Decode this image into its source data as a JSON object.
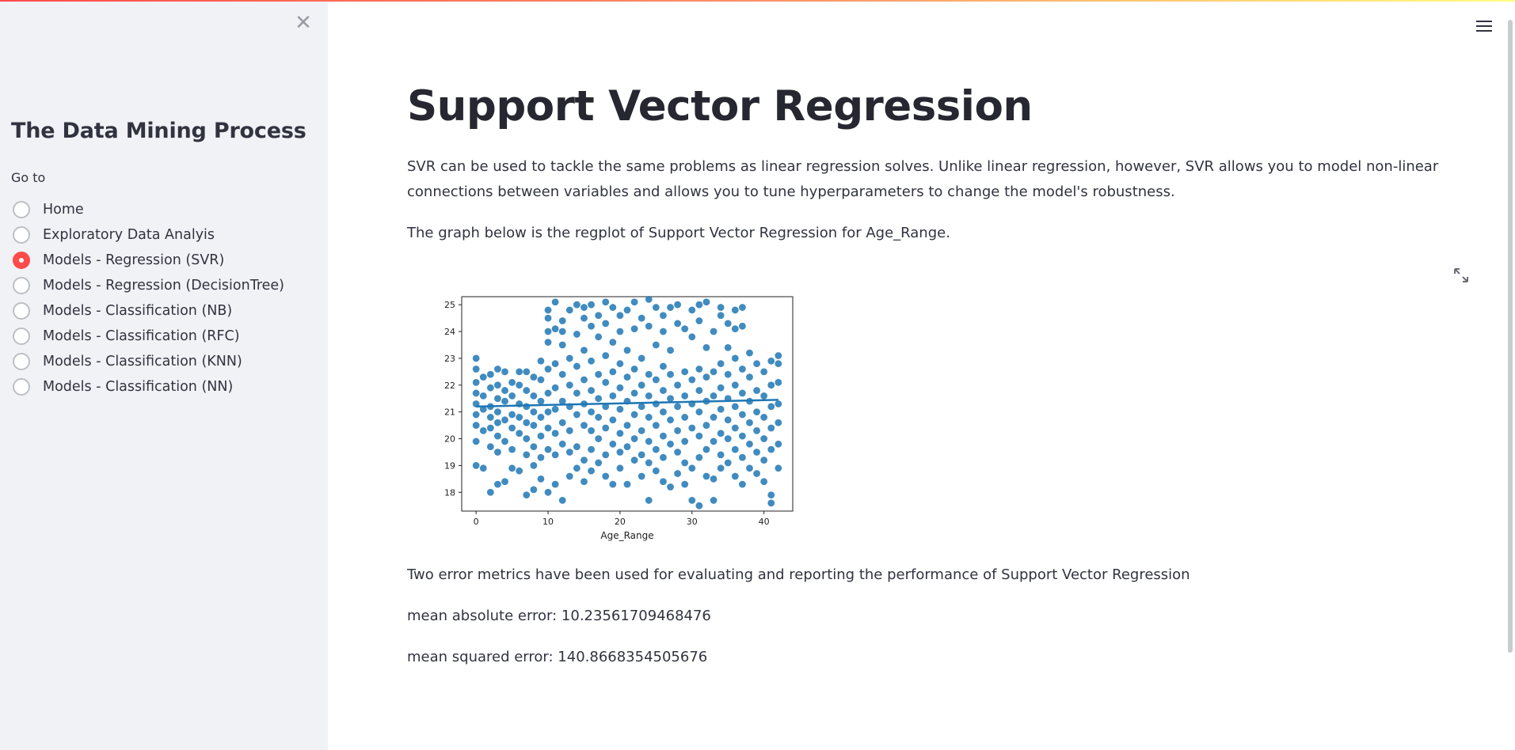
{
  "sidebar": {
    "close_glyph": "✕",
    "title": "The Data Mining Process",
    "goto_label": "Go to",
    "options": [
      {
        "label": "Home",
        "checked": false
      },
      {
        "label": "Exploratory Data Analyis",
        "checked": false
      },
      {
        "label": "Models - Regression (SVR)",
        "checked": true
      },
      {
        "label": "Models - Regression (DecisionTree)",
        "checked": false
      },
      {
        "label": "Models - Classification (NB)",
        "checked": false
      },
      {
        "label": "Models - Classification (RFC)",
        "checked": false
      },
      {
        "label": "Models - Classification (KNN)",
        "checked": false
      },
      {
        "label": "Models - Classification (NN)",
        "checked": false
      }
    ]
  },
  "header": {
    "menu_icon": "hamburger-menu-icon"
  },
  "main": {
    "title": "Support Vector Regression",
    "intro": "SVR can be used to tackle the same problems as linear regression solves. Unlike linear regression, however, SVR allows you to model non-linear connections between variables and allows you to tune hyperparameters to change the model's robustness.",
    "graph_caption": "The graph below is the regplot of Support Vector Regression for Age_Range.",
    "metrics_intro": "Two error metrics have been used for evaluating and reporting the performance of Support Vector Regression",
    "mae": "mean absolute error: 10.23561709468476",
    "mse": "mean squared error: 140.8668354505676",
    "expand_icon": "fullscreen-expand-icon"
  },
  "colors": {
    "accent": "#ff4b4b",
    "point": "#1f77b4",
    "sidebar_bg": "#f0f2f6"
  },
  "chart_data": {
    "type": "scatter",
    "xlabel": "Age_Range",
    "ylabel": "",
    "xlim": [
      -2,
      44
    ],
    "ylim": [
      17.3,
      25.3
    ],
    "xticks": [
      "0",
      "10",
      "20",
      "30",
      "40"
    ],
    "yticks": [
      "18",
      "19",
      "20",
      "21",
      "22",
      "23",
      "24",
      "25"
    ],
    "regression_line": {
      "x": [
        0,
        42
      ],
      "y": [
        21.2,
        21.45
      ]
    },
    "points": [
      [
        0,
        19.0
      ],
      [
        0,
        19.9
      ],
      [
        0,
        20.5
      ],
      [
        0,
        20.9
      ],
      [
        0,
        21.3
      ],
      [
        0,
        21.7
      ],
      [
        0,
        22.1
      ],
      [
        0,
        22.6
      ],
      [
        0,
        23.0
      ],
      [
        1,
        18.9
      ],
      [
        1,
        20.3
      ],
      [
        1,
        21.1
      ],
      [
        1,
        21.6
      ],
      [
        1,
        22.3
      ],
      [
        2,
        18.0
      ],
      [
        2,
        19.7
      ],
      [
        2,
        20.4
      ],
      [
        2,
        20.8
      ],
      [
        2,
        21.2
      ],
      [
        2,
        21.9
      ],
      [
        2,
        22.4
      ],
      [
        3,
        18.3
      ],
      [
        3,
        19.5
      ],
      [
        3,
        20.1
      ],
      [
        3,
        20.6
      ],
      [
        3,
        21.0
      ],
      [
        3,
        21.5
      ],
      [
        3,
        22.0
      ],
      [
        3,
        22.6
      ],
      [
        4,
        18.4
      ],
      [
        4,
        19.9
      ],
      [
        4,
        20.7
      ],
      [
        4,
        21.4
      ],
      [
        4,
        21.8
      ],
      [
        4,
        22.5
      ],
      [
        5,
        18.9
      ],
      [
        5,
        19.6
      ],
      [
        5,
        20.4
      ],
      [
        5,
        20.9
      ],
      [
        5,
        21.6
      ],
      [
        5,
        22.1
      ],
      [
        6,
        18.8
      ],
      [
        6,
        20.2
      ],
      [
        6,
        20.8
      ],
      [
        6,
        21.3
      ],
      [
        6,
        22.0
      ],
      [
        6,
        22.5
      ],
      [
        7,
        17.9
      ],
      [
        7,
        19.4
      ],
      [
        7,
        20.0
      ],
      [
        7,
        20.6
      ],
      [
        7,
        21.2
      ],
      [
        7,
        21.8
      ],
      [
        7,
        22.5
      ],
      [
        8,
        18.1
      ],
      [
        8,
        19.0
      ],
      [
        8,
        19.7
      ],
      [
        8,
        20.5
      ],
      [
        8,
        21.0
      ],
      [
        8,
        21.6
      ],
      [
        8,
        22.3
      ],
      [
        9,
        18.5
      ],
      [
        9,
        19.3
      ],
      [
        9,
        20.1
      ],
      [
        9,
        20.8
      ],
      [
        9,
        21.4
      ],
      [
        9,
        22.2
      ],
      [
        9,
        22.9
      ],
      [
        10,
        18.0
      ],
      [
        10,
        19.6
      ],
      [
        10,
        20.4
      ],
      [
        10,
        21.0
      ],
      [
        10,
        21.7
      ],
      [
        10,
        22.6
      ],
      [
        10,
        23.6
      ],
      [
        10,
        24.0
      ],
      [
        10,
        24.5
      ],
      [
        10,
        24.8
      ],
      [
        11,
        18.3
      ],
      [
        11,
        19.4
      ],
      [
        11,
        20.2
      ],
      [
        11,
        21.1
      ],
      [
        11,
        21.9
      ],
      [
        11,
        22.8
      ],
      [
        11,
        24.1
      ],
      [
        11,
        25.1
      ],
      [
        12,
        17.7
      ],
      [
        12,
        19.8
      ],
      [
        12,
        20.6
      ],
      [
        12,
        21.4
      ],
      [
        12,
        22.4
      ],
      [
        12,
        23.5
      ],
      [
        12,
        24.0
      ],
      [
        12,
        24.4
      ],
      [
        13,
        18.6
      ],
      [
        13,
        19.5
      ],
      [
        13,
        20.3
      ],
      [
        13,
        21.2
      ],
      [
        13,
        22.0
      ],
      [
        13,
        23.0
      ],
      [
        13,
        24.8
      ],
      [
        14,
        18.9
      ],
      [
        14,
        19.7
      ],
      [
        14,
        20.9
      ],
      [
        14,
        21.7
      ],
      [
        14,
        22.7
      ],
      [
        14,
        23.9
      ],
      [
        14,
        25.0
      ],
      [
        15,
        18.4
      ],
      [
        15,
        19.2
      ],
      [
        15,
        20.5
      ],
      [
        15,
        21.3
      ],
      [
        15,
        22.2
      ],
      [
        15,
        23.3
      ],
      [
        15,
        24.5
      ],
      [
        15,
        24.9
      ],
      [
        16,
        18.8
      ],
      [
        16,
        19.6
      ],
      [
        16,
        20.3
      ],
      [
        16,
        21.0
      ],
      [
        16,
        21.8
      ],
      [
        16,
        22.9
      ],
      [
        16,
        24.2
      ],
      [
        16,
        25.0
      ],
      [
        17,
        19.1
      ],
      [
        17,
        20.0
      ],
      [
        17,
        20.8
      ],
      [
        17,
        21.5
      ],
      [
        17,
        22.4
      ],
      [
        17,
        23.8
      ],
      [
        17,
        24.6
      ],
      [
        18,
        18.6
      ],
      [
        18,
        19.4
      ],
      [
        18,
        20.4
      ],
      [
        18,
        21.2
      ],
      [
        18,
        22.1
      ],
      [
        18,
        23.1
      ],
      [
        18,
        24.3
      ],
      [
        18,
        25.1
      ],
      [
        19,
        18.3
      ],
      [
        19,
        19.8
      ],
      [
        19,
        20.7
      ],
      [
        19,
        21.6
      ],
      [
        19,
        22.5
      ],
      [
        19,
        23.6
      ],
      [
        19,
        24.9
      ],
      [
        20,
        18.9
      ],
      [
        20,
        19.5
      ],
      [
        20,
        20.2
      ],
      [
        20,
        21.1
      ],
      [
        20,
        21.9
      ],
      [
        20,
        22.8
      ],
      [
        20,
        24.0
      ],
      [
        20,
        24.6
      ],
      [
        21,
        18.3
      ],
      [
        21,
        19.7
      ],
      [
        21,
        20.5
      ],
      [
        21,
        21.4
      ],
      [
        21,
        22.3
      ],
      [
        21,
        23.3
      ],
      [
        21,
        24.8
      ],
      [
        22,
        19.2
      ],
      [
        22,
        20.0
      ],
      [
        22,
        20.9
      ],
      [
        22,
        21.7
      ],
      [
        22,
        22.6
      ],
      [
        22,
        24.1
      ],
      [
        22,
        25.1
      ],
      [
        23,
        18.6
      ],
      [
        23,
        19.4
      ],
      [
        23,
        20.3
      ],
      [
        23,
        21.2
      ],
      [
        23,
        22.0
      ],
      [
        23,
        23.0
      ],
      [
        23,
        24.5
      ],
      [
        24,
        17.7
      ],
      [
        24,
        19.1
      ],
      [
        24,
        19.9
      ],
      [
        24,
        20.8
      ],
      [
        24,
        21.6
      ],
      [
        24,
        22.4
      ],
      [
        24,
        24.2
      ],
      [
        24,
        25.2
      ],
      [
        25,
        18.8
      ],
      [
        25,
        19.6
      ],
      [
        25,
        20.5
      ],
      [
        25,
        21.3
      ],
      [
        25,
        22.2
      ],
      [
        25,
        23.5
      ],
      [
        25,
        24.9
      ],
      [
        26,
        18.4
      ],
      [
        26,
        19.3
      ],
      [
        26,
        20.1
      ],
      [
        26,
        21.0
      ],
      [
        26,
        21.8
      ],
      [
        26,
        22.7
      ],
      [
        26,
        24.0
      ],
      [
        26,
        24.6
      ],
      [
        27,
        18.2
      ],
      [
        27,
        19.8
      ],
      [
        27,
        20.7
      ],
      [
        27,
        21.5
      ],
      [
        27,
        22.4
      ],
      [
        27,
        23.3
      ],
      [
        27,
        24.9
      ],
      [
        28,
        18.7
      ],
      [
        28,
        19.5
      ],
      [
        28,
        20.3
      ],
      [
        28,
        21.2
      ],
      [
        28,
        22.0
      ],
      [
        28,
        24.3
      ],
      [
        28,
        25.0
      ],
      [
        29,
        18.3
      ],
      [
        29,
        19.1
      ],
      [
        29,
        19.9
      ],
      [
        29,
        20.8
      ],
      [
        29,
        21.6
      ],
      [
        29,
        22.5
      ],
      [
        29,
        24.1
      ],
      [
        30,
        17.7
      ],
      [
        30,
        18.9
      ],
      [
        30,
        20.4
      ],
      [
        30,
        21.3
      ],
      [
        30,
        22.2
      ],
      [
        30,
        23.8
      ],
      [
        30,
        24.8
      ],
      [
        31,
        17.5
      ],
      [
        31,
        19.3
      ],
      [
        31,
        20.1
      ],
      [
        31,
        21.0
      ],
      [
        31,
        21.8
      ],
      [
        31,
        22.6
      ],
      [
        31,
        24.4
      ],
      [
        31,
        25.0
      ],
      [
        32,
        18.6
      ],
      [
        32,
        19.6
      ],
      [
        32,
        20.5
      ],
      [
        32,
        21.4
      ],
      [
        32,
        22.3
      ],
      [
        32,
        23.4
      ],
      [
        32,
        25.1
      ],
      [
        33,
        17.7
      ],
      [
        33,
        18.5
      ],
      [
        33,
        19.9
      ],
      [
        33,
        20.8
      ],
      [
        33,
        21.6
      ],
      [
        33,
        22.5
      ],
      [
        33,
        24.0
      ],
      [
        34,
        18.9
      ],
      [
        34,
        19.4
      ],
      [
        34,
        20.2
      ],
      [
        34,
        21.1
      ],
      [
        34,
        21.9
      ],
      [
        34,
        22.8
      ],
      [
        34,
        24.6
      ],
      [
        34,
        24.9
      ],
      [
        35,
        19.1
      ],
      [
        35,
        20.0
      ],
      [
        35,
        20.7
      ],
      [
        35,
        21.5
      ],
      [
        35,
        22.4
      ],
      [
        35,
        23.4
      ],
      [
        35,
        24.3
      ],
      [
        36,
        18.6
      ],
      [
        36,
        19.6
      ],
      [
        36,
        20.4
      ],
      [
        36,
        21.2
      ],
      [
        36,
        22.0
      ],
      [
        36,
        23.0
      ],
      [
        36,
        24.1
      ],
      [
        36,
        24.8
      ],
      [
        37,
        18.3
      ],
      [
        37,
        19.3
      ],
      [
        37,
        20.1
      ],
      [
        37,
        20.9
      ],
      [
        37,
        21.7
      ],
      [
        37,
        22.6
      ],
      [
        37,
        24.2
      ],
      [
        37,
        24.9
      ],
      [
        38,
        18.9
      ],
      [
        38,
        19.8
      ],
      [
        38,
        20.6
      ],
      [
        38,
        21.4
      ],
      [
        38,
        22.3
      ],
      [
        38,
        23.2
      ],
      [
        39,
        18.7
      ],
      [
        39,
        19.5
      ],
      [
        39,
        20.3
      ],
      [
        39,
        21.0
      ],
      [
        39,
        21.8
      ],
      [
        39,
        22.8
      ],
      [
        40,
        18.4
      ],
      [
        40,
        19.2
      ],
      [
        40,
        20.0
      ],
      [
        40,
        20.8
      ],
      [
        40,
        21.6
      ],
      [
        40,
        22.5
      ],
      [
        41,
        17.6
      ],
      [
        41,
        17.9
      ],
      [
        41,
        19.6
      ],
      [
        41,
        20.4
      ],
      [
        41,
        21.2
      ],
      [
        41,
        22.0
      ],
      [
        41,
        22.9
      ],
      [
        42,
        18.9
      ],
      [
        42,
        19.8
      ],
      [
        42,
        20.6
      ],
      [
        42,
        21.3
      ],
      [
        42,
        22.1
      ],
      [
        42,
        22.8
      ],
      [
        42,
        23.1
      ]
    ]
  }
}
